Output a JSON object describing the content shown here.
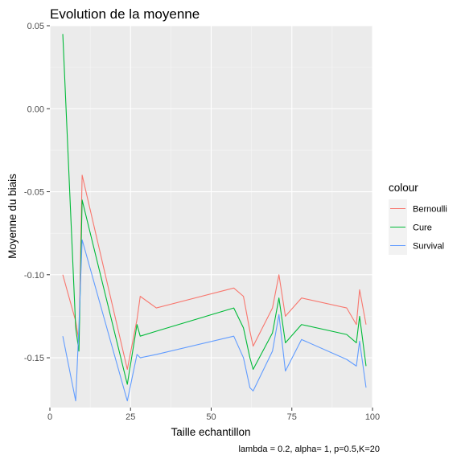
{
  "chart_data": {
    "type": "line",
    "title": "Evolution de la moyenne",
    "xlabel": "Taille echantillon",
    "ylabel": "Moyenne du biais",
    "caption": "lambda = 0.2, alpha= 1, p=0.5,K=20",
    "xlim": [
      0,
      100
    ],
    "ylim": [
      -0.18,
      0.05
    ],
    "x_ticks": [
      0,
      25,
      50,
      75,
      100
    ],
    "x_tick_labels": [
      "0",
      "25",
      "50",
      "75",
      "100"
    ],
    "y_ticks": [
      0.05,
      0.0,
      -0.05,
      -0.1,
      -0.15
    ],
    "y_tick_labels": [
      "0.05",
      "0.00",
      "-0.05",
      "-0.10",
      "-0.15"
    ],
    "grid": true,
    "legend": {
      "title": "colour",
      "position": "right"
    },
    "series": [
      {
        "name": "Bernoulli",
        "color": "#F8766D",
        "x": [
          4,
          8,
          9,
          10,
          24,
          27,
          28,
          33,
          57,
          60,
          62,
          63,
          69,
          71,
          73,
          78,
          92,
          95,
          96,
          98
        ],
        "y": [
          -0.1,
          -0.128,
          -0.14,
          -0.04,
          -0.157,
          -0.127,
          -0.113,
          -0.12,
          -0.108,
          -0.113,
          -0.134,
          -0.143,
          -0.12,
          -0.1,
          -0.125,
          -0.114,
          -0.12,
          -0.13,
          -0.109,
          -0.13
        ]
      },
      {
        "name": "Cure",
        "color": "#00BA38",
        "x": [
          4,
          8,
          9,
          10,
          24,
          27,
          28,
          33,
          57,
          60,
          62,
          63,
          69,
          71,
          73,
          78,
          92,
          95,
          96,
          98
        ],
        "y": [
          0.045,
          -0.132,
          -0.146,
          -0.055,
          -0.166,
          -0.13,
          -0.137,
          -0.134,
          -0.12,
          -0.132,
          -0.15,
          -0.157,
          -0.135,
          -0.114,
          -0.141,
          -0.13,
          -0.136,
          -0.141,
          -0.125,
          -0.155
        ]
      },
      {
        "name": "Survival",
        "color": "#619CFF",
        "x": [
          4,
          8,
          9,
          10,
          24,
          27,
          28,
          33,
          57,
          60,
          62,
          63,
          69,
          71,
          73,
          78,
          92,
          95,
          96,
          98
        ],
        "y": [
          -0.137,
          -0.176,
          -0.131,
          -0.079,
          -0.176,
          -0.148,
          -0.15,
          -0.148,
          -0.137,
          -0.15,
          -0.168,
          -0.17,
          -0.146,
          -0.124,
          -0.158,
          -0.139,
          -0.151,
          -0.155,
          -0.14,
          -0.168
        ]
      }
    ]
  }
}
